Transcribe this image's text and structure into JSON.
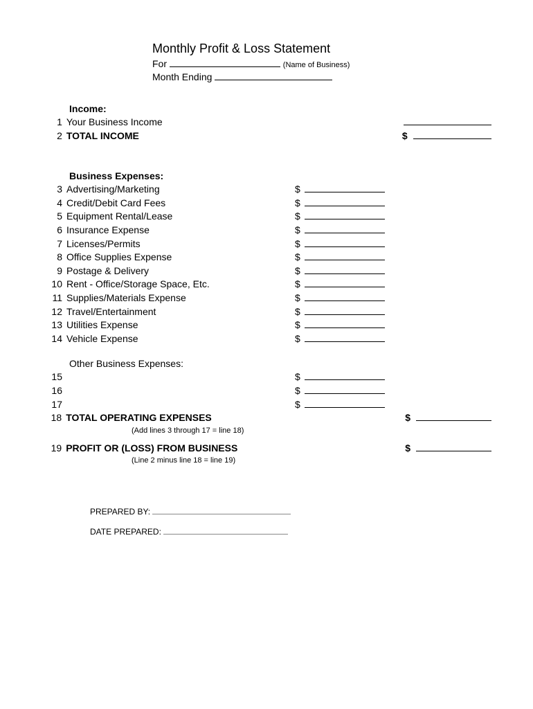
{
  "title": "Monthly Profit & Loss Statement",
  "for_label": "For",
  "name_hint": "(Name of Business)",
  "month_label": "Month Ending",
  "income": {
    "header": "Income:",
    "items": [
      {
        "num": "1",
        "label": "Your Business Income"
      },
      {
        "num": "2",
        "label": "TOTAL INCOME",
        "bold": true,
        "total": true
      }
    ]
  },
  "expenses": {
    "header": "Business Expenses:",
    "items": [
      {
        "num": "3",
        "label": "Advertising/Marketing"
      },
      {
        "num": "4",
        "label": "Credit/Debit Card Fees"
      },
      {
        "num": "5",
        "label": "Equipment Rental/Lease"
      },
      {
        "num": "6",
        "label": "Insurance Expense"
      },
      {
        "num": "7",
        "label": "Licenses/Permits"
      },
      {
        "num": "8",
        "label": "Office Supplies Expense"
      },
      {
        "num": "9",
        "label": "Postage & Delivery"
      },
      {
        "num": "10",
        "label": "Rent - Office/Storage Space, Etc."
      },
      {
        "num": "11",
        "label": "Supplies/Materials Expense"
      },
      {
        "num": "12",
        "label": "Travel/Entertainment"
      },
      {
        "num": "13",
        "label": "Utilities Expense"
      },
      {
        "num": "14",
        "label": "Vehicle Expense"
      }
    ]
  },
  "other_expenses": {
    "header": "Other Business Expenses:",
    "items": [
      {
        "num": "15",
        "label": ""
      },
      {
        "num": "16",
        "label": ""
      },
      {
        "num": "17",
        "label": ""
      }
    ]
  },
  "total_operating": {
    "num": "18",
    "label": "TOTAL OPERATING EXPENSES",
    "note": "(Add lines 3 through 17 = line 18)"
  },
  "profit_loss": {
    "num": "19",
    "label": "PROFIT OR (LOSS) FROM BUSINESS",
    "note": "(Line 2 minus line 18 = line 19)"
  },
  "footer": {
    "prepared_by": "PREPARED BY:",
    "date_prepared": "DATE PREPARED:"
  },
  "dollar": "$"
}
